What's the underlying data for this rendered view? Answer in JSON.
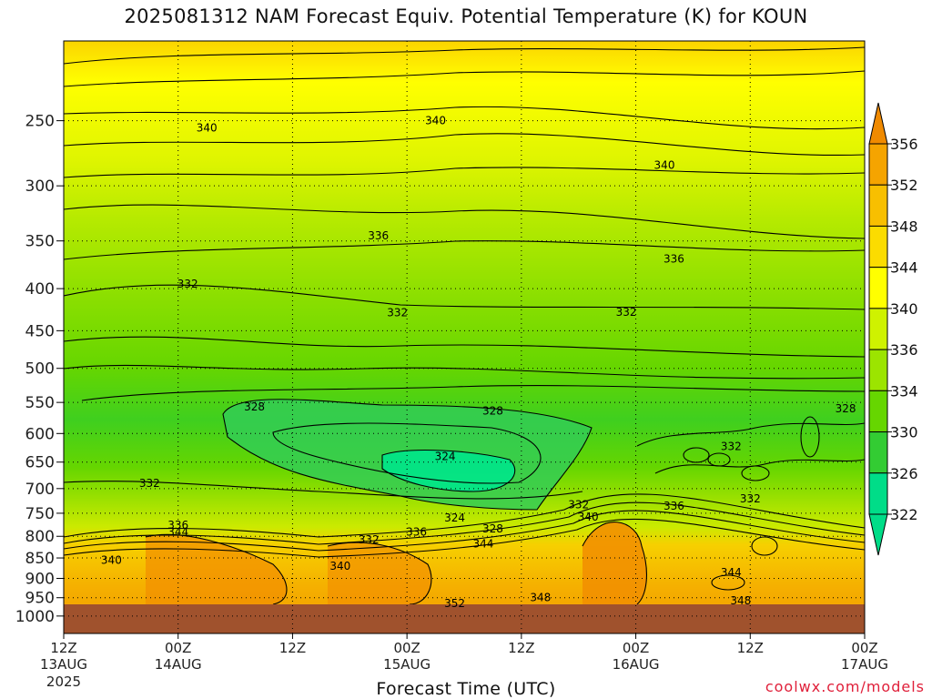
{
  "title": "2025081312 NAM Forecast Equiv. Potential Temperature (K) for KOUN",
  "x_axis_title": "Forecast Time (UTC)",
  "credit": "coolwx.com/models",
  "chart_data": {
    "type": "heatmap",
    "title": "2025081312 NAM Forecast Equiv. Potential Temperature (K) for KOUN",
    "xlabel": "Forecast Time (UTC)",
    "ylabel": "",
    "y_ticks": [
      "250",
      "300",
      "350",
      "400",
      "450",
      "500",
      "550",
      "600",
      "650",
      "700",
      "750",
      "800",
      "850",
      "900",
      "950",
      "1000"
    ],
    "y_tick_values": [
      250,
      300,
      350,
      400,
      450,
      500,
      550,
      600,
      650,
      700,
      750,
      800,
      850,
      900,
      950,
      1000
    ],
    "y_scale": "log",
    "y_inverted": true,
    "ylim": [
      200,
      1050
    ],
    "x_ticks": [
      {
        "hour": 0,
        "line1": "12Z",
        "line2": "13AUG",
        "line3": "2025"
      },
      {
        "hour": 12,
        "line1": "00Z",
        "line2": "14AUG",
        "line3": ""
      },
      {
        "hour": 24,
        "line1": "12Z",
        "line2": "",
        "line3": ""
      },
      {
        "hour": 36,
        "line1": "00Z",
        "line2": "15AUG",
        "line3": ""
      },
      {
        "hour": 48,
        "line1": "12Z",
        "line2": "",
        "line3": ""
      },
      {
        "hour": 60,
        "line1": "00Z",
        "line2": "16AUG",
        "line3": ""
      },
      {
        "hour": 72,
        "line1": "12Z",
        "line2": "",
        "line3": ""
      },
      {
        "hour": 84,
        "line1": "00Z",
        "line2": "17AUG",
        "line3": ""
      }
    ],
    "xlim_hours": [
      0,
      84
    ],
    "grid": true,
    "colorbar": {
      "labels": [
        "356",
        "352",
        "348",
        "344",
        "340",
        "336",
        "334",
        "330",
        "326",
        "322"
      ],
      "colors": [
        "#f08a00",
        "#f5a400",
        "#f8bf00",
        "#fbdc00",
        "#ffff00",
        "#cff200",
        "#9ce400",
        "#66d600",
        "#33cc33",
        "#00dd88"
      ],
      "placement": "right"
    },
    "ground_color": "#a0522d",
    "contour_labels": [
      {
        "hour": 15,
        "p": 255,
        "text": "340"
      },
      {
        "hour": 39,
        "p": 250,
        "text": "340"
      },
      {
        "hour": 63,
        "p": 283,
        "text": "340"
      },
      {
        "hour": 33,
        "p": 345,
        "text": "336"
      },
      {
        "hour": 64,
        "p": 368,
        "text": "336"
      },
      {
        "hour": 13,
        "p": 395,
        "text": "332"
      },
      {
        "hour": 35,
        "p": 428,
        "text": "332"
      },
      {
        "hour": 59,
        "p": 427,
        "text": "332"
      },
      {
        "hour": 20,
        "p": 557,
        "text": "328"
      },
      {
        "hour": 45,
        "p": 563,
        "text": "328"
      },
      {
        "hour": 82,
        "p": 560,
        "text": "328"
      },
      {
        "hour": 40,
        "p": 640,
        "text": "324"
      },
      {
        "hour": 70,
        "p": 622,
        "text": "332"
      },
      {
        "hour": 9,
        "p": 690,
        "text": "332"
      },
      {
        "hour": 72,
        "p": 720,
        "text": "332"
      },
      {
        "hour": 54,
        "p": 732,
        "text": "332"
      },
      {
        "hour": 64,
        "p": 735,
        "text": "336"
      },
      {
        "hour": 41,
        "p": 760,
        "text": "324"
      },
      {
        "hour": 45,
        "p": 783,
        "text": "328"
      },
      {
        "hour": 55,
        "p": 758,
        "text": "340"
      },
      {
        "hour": 12,
        "p": 775,
        "text": "336"
      },
      {
        "hour": 12,
        "p": 790,
        "text": "344"
      },
      {
        "hour": 37,
        "p": 790,
        "text": "336"
      },
      {
        "hour": 32,
        "p": 808,
        "text": "332"
      },
      {
        "hour": 44,
        "p": 817,
        "text": "344"
      },
      {
        "hour": 5,
        "p": 855,
        "text": "340"
      },
      {
        "hour": 29,
        "p": 870,
        "text": "340"
      },
      {
        "hour": 70,
        "p": 885,
        "text": "344"
      },
      {
        "hour": 41,
        "p": 965,
        "text": "352"
      },
      {
        "hour": 50,
        "p": 950,
        "text": "348"
      },
      {
        "hour": 71,
        "p": 958,
        "text": "348"
      }
    ]
  }
}
